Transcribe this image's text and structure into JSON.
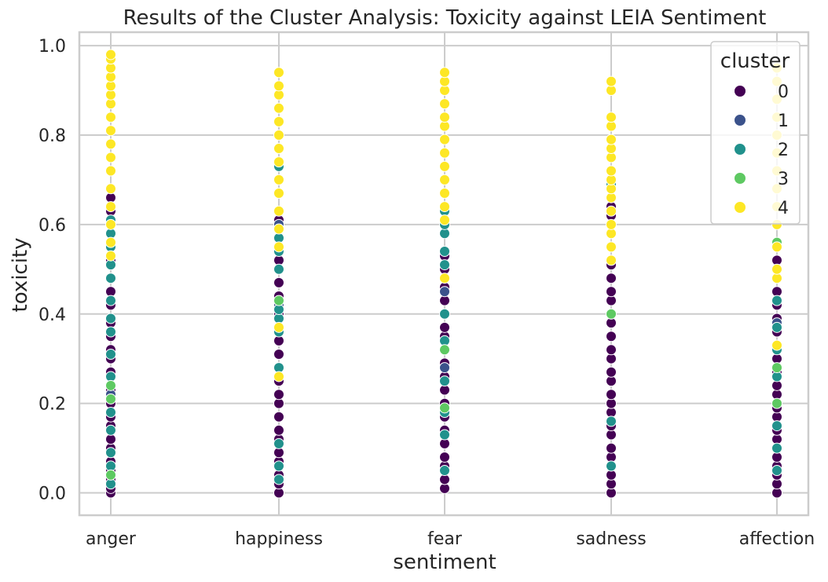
{
  "chart_data": {
    "type": "scatter",
    "title": "Results of the Cluster Analysis: Toxicity against LEIA Sentiment",
    "xlabel": "sentiment",
    "ylabel": "toxicity",
    "categories": [
      "anger",
      "happiness",
      "fear",
      "sadness",
      "affection"
    ],
    "ylim": [
      -0.05,
      1.03
    ],
    "yticks": [
      "0.0",
      "0.2",
      "0.4",
      "0.6",
      "0.8",
      "1.0"
    ],
    "grid": true,
    "legend": {
      "title": "cluster",
      "placement": "top-right",
      "entries": [
        "0",
        "1",
        "2",
        "3",
        "4"
      ]
    },
    "cluster_colors": {
      "0": "#440154",
      "1": "#3b528b",
      "2": "#21918c",
      "3": "#5ec962",
      "4": "#fde725"
    },
    "series": [
      {
        "name": "0",
        "points": {
          "anger": [
            0.0,
            0.01,
            0.03,
            0.05,
            0.07,
            0.1,
            0.12,
            0.15,
            0.17,
            0.2,
            0.23,
            0.27,
            0.3,
            0.32,
            0.35,
            0.38,
            0.42,
            0.45,
            0.48,
            0.52,
            0.56,
            0.6,
            0.63,
            0.66
          ],
          "happiness": [
            0.0,
            0.02,
            0.04,
            0.07,
            0.09,
            0.12,
            0.14,
            0.17,
            0.2,
            0.22,
            0.25,
            0.28,
            0.31,
            0.34,
            0.37,
            0.4,
            0.44,
            0.47,
            0.5,
            0.52,
            0.57,
            0.61
          ],
          "fear": [
            0.01,
            0.03,
            0.06,
            0.08,
            0.11,
            0.14,
            0.17,
            0.2,
            0.23,
            0.26,
            0.29,
            0.32,
            0.35,
            0.37,
            0.4,
            0.43,
            0.46,
            0.5,
            0.53
          ],
          "sadness": [
            0.0,
            0.02,
            0.04,
            0.06,
            0.08,
            0.1,
            0.13,
            0.15,
            0.18,
            0.2,
            0.22,
            0.25,
            0.27,
            0.3,
            0.32,
            0.35,
            0.38,
            0.4,
            0.43,
            0.45,
            0.48,
            0.51,
            0.55,
            0.58,
            0.62,
            0.64
          ],
          "affection": [
            0.0,
            0.02,
            0.04,
            0.06,
            0.08,
            0.1,
            0.12,
            0.14,
            0.17,
            0.19,
            0.22,
            0.24,
            0.27,
            0.3,
            0.33,
            0.36,
            0.39,
            0.42,
            0.45,
            0.48,
            0.52
          ]
        }
      },
      {
        "name": "1",
        "points": {
          "anger": [
            0.22
          ],
          "happiness": [
            0.6,
            0.42
          ],
          "fear": [
            0.45,
            0.28
          ],
          "sadness": [],
          "affection": [
            0.38
          ]
        }
      },
      {
        "name": "2",
        "points": {
          "anger": [
            0.02,
            0.06,
            0.09,
            0.14,
            0.18,
            0.26,
            0.31,
            0.36,
            0.39,
            0.43,
            0.48,
            0.51,
            0.55,
            0.58,
            0.61
          ],
          "happiness": [
            0.03,
            0.06,
            0.11,
            0.28,
            0.36,
            0.39,
            0.41,
            0.5,
            0.54,
            0.57,
            0.73
          ],
          "fear": [
            0.05,
            0.13,
            0.18,
            0.25,
            0.34,
            0.4,
            0.51,
            0.54,
            0.58,
            0.6,
            0.63
          ],
          "sadness": [
            0.06,
            0.16,
            0.69
          ],
          "affection": [
            0.05,
            0.1,
            0.15,
            0.26,
            0.32,
            0.37,
            0.43
          ]
        }
      },
      {
        "name": "3",
        "points": {
          "anger": [
            0.04,
            0.21,
            0.24
          ],
          "happiness": [
            0.43
          ],
          "fear": [
            0.19,
            0.32
          ],
          "sadness": [
            0.4
          ],
          "affection": [
            0.2,
            0.28,
            0.56
          ]
        }
      },
      {
        "name": "4",
        "points": {
          "anger": [
            0.53,
            0.56,
            0.6,
            0.64,
            0.68,
            0.72,
            0.75,
            0.78,
            0.81,
            0.84,
            0.87,
            0.89,
            0.91,
            0.93,
            0.95,
            0.97,
            0.98
          ],
          "happiness": [
            0.26,
            0.37,
            0.55,
            0.59,
            0.63,
            0.67,
            0.7,
            0.74,
            0.77,
            0.8,
            0.83,
            0.86,
            0.89,
            0.91,
            0.94
          ],
          "fear": [
            0.48,
            0.61,
            0.64,
            0.67,
            0.7,
            0.73,
            0.76,
            0.79,
            0.82,
            0.84,
            0.87,
            0.9,
            0.92,
            0.94
          ],
          "sadness": [
            0.52,
            0.55,
            0.58,
            0.6,
            0.63,
            0.66,
            0.68,
            0.7,
            0.72,
            0.75,
            0.77,
            0.79,
            0.82,
            0.84,
            0.9,
            0.92
          ],
          "affection": [
            0.33,
            0.48,
            0.5,
            0.55,
            0.6,
            0.64,
            0.68,
            0.72,
            0.76,
            0.8,
            0.84,
            0.88,
            0.92,
            0.95
          ]
        }
      }
    ]
  }
}
